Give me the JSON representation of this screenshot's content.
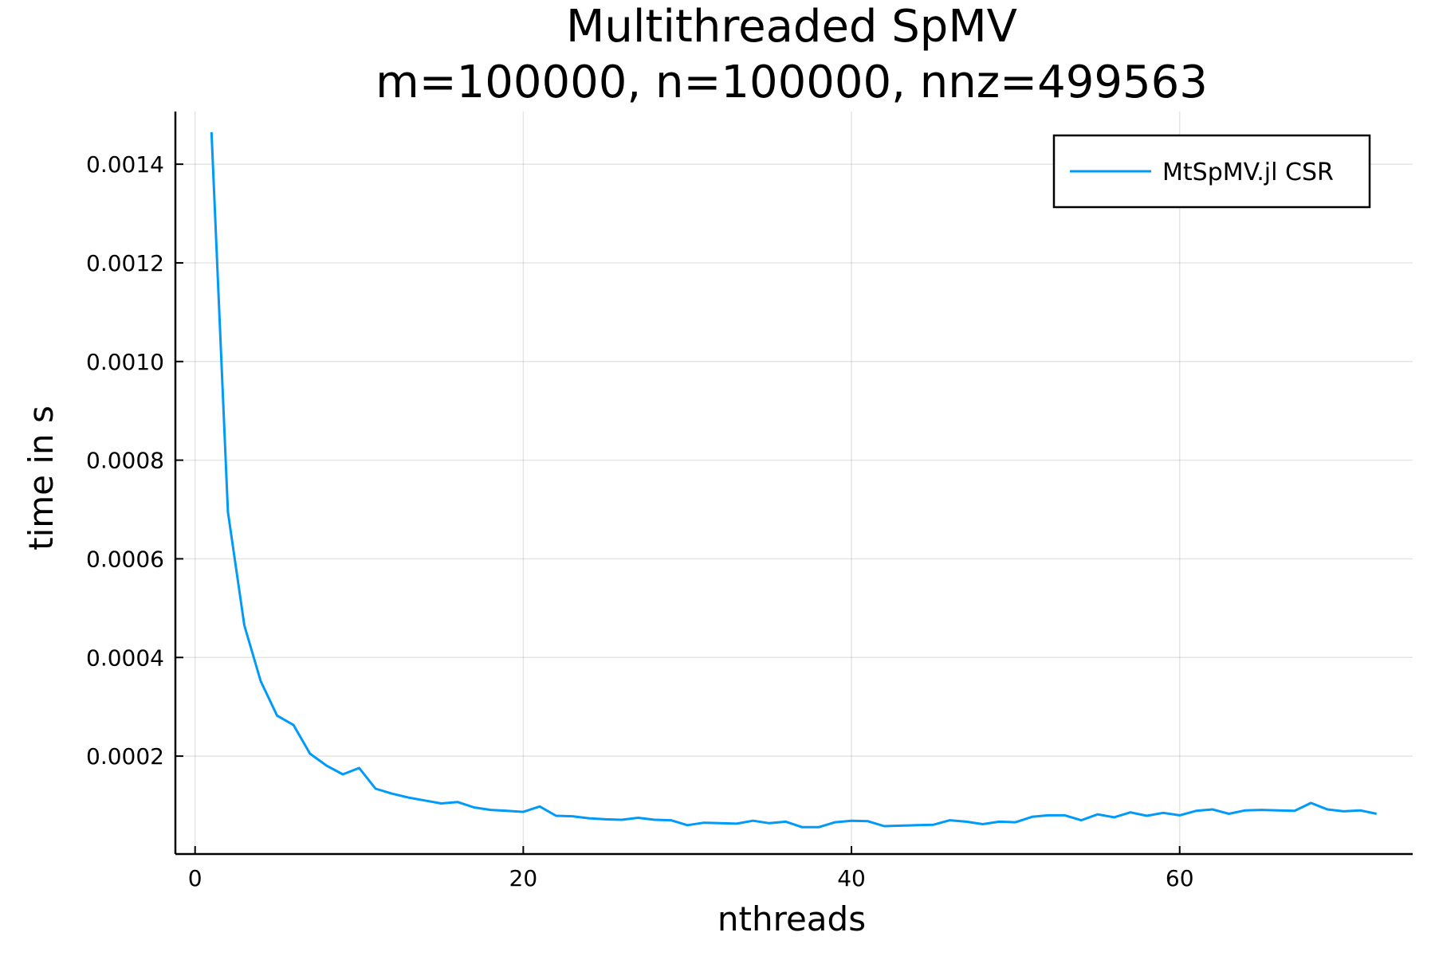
{
  "chart_data": {
    "type": "line",
    "title": "Multithreaded SpMV",
    "subtitle": "m=100000, n=100000, nnz=499563",
    "xlabel": "nthreads",
    "ylabel": "time in s",
    "xlim": [
      -1.2,
      74.2
    ],
    "ylim": [
      1.5e-06,
      0.0015068
    ],
    "xticks": [
      0,
      20,
      40,
      60
    ],
    "xtick_labels": [
      "0",
      "20",
      "40",
      "60"
    ],
    "yticks": [
      0.0002,
      0.0004,
      0.0006,
      0.0008,
      0.001,
      0.0012,
      0.0014
    ],
    "ytick_labels": [
      "0.0002",
      "0.0004",
      "0.0006",
      "0.0008",
      "0.0010",
      "0.0012",
      "0.0014"
    ],
    "grid": true,
    "legend_position": "top-right",
    "series": [
      {
        "name": "MtSpMV.jl CSR",
        "color": "#009af9",
        "x": [
          1,
          2,
          3,
          4,
          5,
          6,
          7,
          8,
          9,
          10,
          11,
          12,
          13,
          14,
          15,
          16,
          17,
          18,
          19,
          20,
          21,
          22,
          23,
          24,
          25,
          26,
          27,
          28,
          29,
          30,
          31,
          32,
          33,
          34,
          35,
          36,
          37,
          38,
          39,
          40,
          41,
          42,
          43,
          44,
          45,
          46,
          47,
          48,
          49,
          50,
          51,
          52,
          53,
          54,
          55,
          56,
          57,
          58,
          59,
          60,
          61,
          62,
          63,
          64,
          65,
          66,
          67,
          68,
          69,
          70,
          71,
          72
        ],
        "y": [
          0.001465,
          0.000695,
          0.000465,
          0.000352,
          0.000282,
          0.000263,
          0.000205,
          0.000181,
          0.000163,
          0.000176,
          0.000134,
          0.000124,
          0.000116,
          0.00011,
          0.000104,
          0.000107,
          9.6e-05,
          9.1e-05,
          8.9e-05,
          8.7e-05,
          9.8e-05,
          7.9e-05,
          7.8e-05,
          7.4e-05,
          7.2e-05,
          7.1e-05,
          7.5e-05,
          7.1e-05,
          7e-05,
          6e-05,
          6.5e-05,
          6.4e-05,
          6.3e-05,
          6.9e-05,
          6.4e-05,
          6.7e-05,
          5.6e-05,
          5.6e-05,
          6.6e-05,
          6.9e-05,
          6.8e-05,
          5.8e-05,
          5.9e-05,
          6e-05,
          6.1e-05,
          7e-05,
          6.7e-05,
          6.2e-05,
          6.7e-05,
          6.6e-05,
          7.7e-05,
          8e-05,
          8e-05,
          7e-05,
          8.2e-05,
          7.6e-05,
          8.6e-05,
          7.9e-05,
          8.5e-05,
          8e-05,
          8.9e-05,
          9.2e-05,
          8.3e-05,
          9e-05,
          9.1e-05,
          9e-05,
          8.9e-05,
          0.000105,
          9.2e-05,
          8.8e-05,
          9e-05,
          8.3e-05
        ]
      }
    ]
  }
}
